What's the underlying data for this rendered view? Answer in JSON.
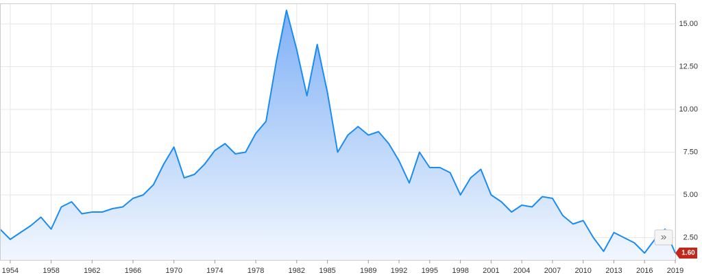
{
  "chart_data": {
    "type": "area",
    "x": [
      1953,
      1954,
      1955,
      1956,
      1957,
      1958,
      1959,
      1960,
      1961,
      1962,
      1963,
      1964,
      1965,
      1966,
      1967,
      1968,
      1969,
      1970,
      1971,
      1972,
      1973,
      1974,
      1975,
      1976,
      1977,
      1978,
      1979,
      1980,
      1981,
      1982,
      1983,
      1984,
      1985,
      1986,
      1987,
      1988,
      1989,
      1990,
      1991,
      1992,
      1993,
      1994,
      1995,
      1996,
      1997,
      1998,
      1999,
      2000,
      2001,
      2002,
      2003,
      2004,
      2005,
      2006,
      2007,
      2008,
      2009,
      2010,
      2011,
      2012,
      2013,
      2014,
      2015,
      2016,
      2017,
      2018,
      2019
    ],
    "series": [
      {
        "color": "#1a8cf0",
        "values": [
          3.0,
          2.4,
          2.8,
          3.2,
          3.7,
          3.0,
          4.3,
          4.6,
          3.9,
          4.0,
          4.0,
          4.2,
          4.3,
          4.8,
          5.0,
          5.6,
          6.8,
          7.8,
          6.0,
          6.2,
          6.8,
          7.6,
          8.0,
          7.4,
          7.5,
          8.6,
          9.3,
          12.8,
          15.8,
          13.5,
          10.8,
          13.8,
          11.0,
          7.5,
          8.5,
          9.0,
          8.5,
          8.7,
          8.0,
          7.0,
          5.7,
          7.5,
          6.6,
          6.6,
          6.3,
          5.0,
          6.0,
          6.5,
          5.0,
          4.6,
          4.0,
          4.4,
          4.3,
          4.9,
          4.8,
          3.8,
          3.3,
          3.5,
          2.5,
          1.7,
          2.8,
          2.5,
          2.2,
          1.6,
          2.4,
          3.0,
          1.6
        ],
        "value_labels": [
          null,
          null,
          null,
          null,
          null,
          null,
          null,
          null,
          null,
          null,
          null,
          null,
          null,
          null,
          null,
          null,
          null,
          null,
          null,
          null,
          null,
          null,
          null,
          null,
          null,
          null,
          null,
          null,
          null,
          null,
          null,
          null,
          null,
          null,
          null,
          null,
          null,
          null,
          null,
          null,
          null,
          null,
          null,
          null,
          null,
          null,
          null,
          null,
          null,
          null,
          null,
          null,
          null,
          null,
          null,
          null,
          null,
          null,
          null,
          null,
          null,
          null,
          null,
          null,
          null,
          null,
          "1.60"
        ]
      }
    ],
    "xlim": [
      1953,
      2019
    ],
    "xticks": [
      1954,
      1958,
      1962,
      1966,
      1970,
      1974,
      1978,
      1982,
      1985,
      1989,
      1992,
      1995,
      1998,
      2001,
      2004,
      2007,
      2010,
      2013,
      2016,
      2019
    ],
    "ylim": [
      1.2,
      16.2
    ],
    "yticks": [
      {
        "value": 2.5,
        "label": "2.50"
      },
      {
        "value": 5,
        "label": "5.00"
      },
      {
        "value": 7.5,
        "label": "7.50"
      },
      {
        "value": 10,
        "label": "10.00"
      },
      {
        "value": 12.5,
        "label": "12.50"
      },
      {
        "value": 15,
        "label": "15.00"
      }
    ],
    "grid": true
  }
}
